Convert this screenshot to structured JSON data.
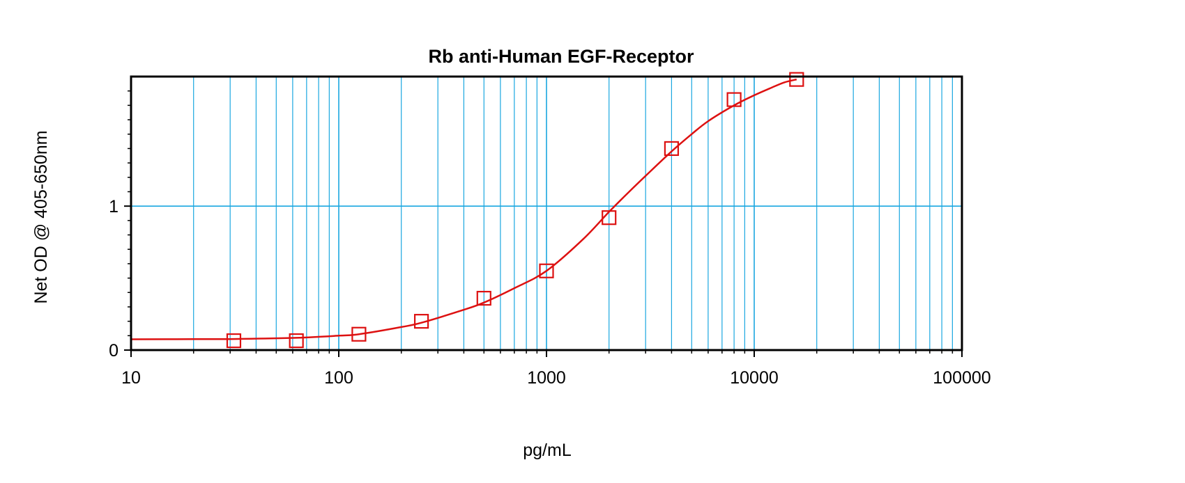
{
  "chart_data": {
    "type": "scatter",
    "title": "Rb anti-Human EGF-Receptor",
    "xlabel": "pg/mL",
    "ylabel": "Net OD @ 405-650nm",
    "x_scale": "log",
    "xlim": [
      10,
      100000
    ],
    "ylim": [
      0,
      1.9
    ],
    "x_ticks": [
      10,
      100,
      1000,
      10000,
      100000
    ],
    "x_tick_labels": [
      "10",
      "100",
      "1000",
      "10000",
      "100000"
    ],
    "y_ticks": [
      0,
      1
    ],
    "y_tick_labels": [
      "0",
      "1"
    ],
    "grid": true,
    "legend": "none",
    "series": [
      {
        "x": [
          31.25,
          62.5,
          125,
          250,
          500,
          1000,
          2000,
          4000,
          8000,
          16000
        ],
        "y": [
          0.065,
          0.065,
          0.11,
          0.2,
          0.36,
          0.55,
          0.92,
          1.4,
          1.74,
          1.88
        ]
      }
    ],
    "fit_curve": {
      "x": [
        10,
        20,
        31.25,
        62.5,
        100,
        125,
        200,
        250,
        400,
        500,
        700,
        1000,
        1500,
        2000,
        2500,
        3000,
        4000,
        5000,
        6000,
        8000,
        10000,
        12000,
        14000,
        16000
      ],
      "y": [
        0.075,
        0.076,
        0.077,
        0.085,
        0.1,
        0.11,
        0.16,
        0.19,
        0.28,
        0.33,
        0.43,
        0.55,
        0.77,
        0.96,
        1.1,
        1.21,
        1.38,
        1.5,
        1.59,
        1.7,
        1.77,
        1.82,
        1.86,
        1.88
      ]
    },
    "colors": {
      "series": "#dd1111",
      "grid": "#1aa7e0",
      "axes": "#000000"
    }
  }
}
